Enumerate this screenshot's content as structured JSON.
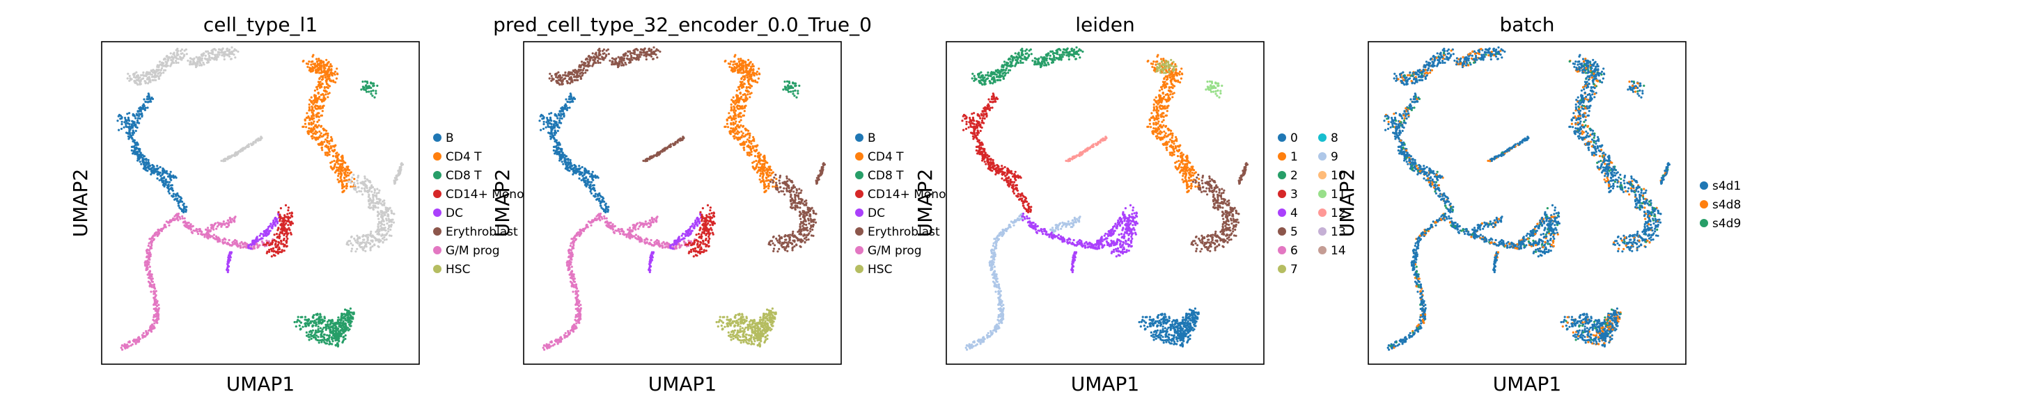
{
  "chart_data": [
    {
      "type": "scatter",
      "title": "cell_type_l1",
      "xlabel": "UMAP1",
      "ylabel": "UMAP2",
      "grid": false,
      "legend_position": "right",
      "legend_columns": 1,
      "series": [
        {
          "name": "B",
          "color": "#1f77b4"
        },
        {
          "name": "CD4 T",
          "color": "#ff7f0e"
        },
        {
          "name": "CD8 T",
          "color": "#279e68"
        },
        {
          "name": "CD14+ Mono",
          "color": "#d62728"
        },
        {
          "name": "DC",
          "color": "#aa40fc"
        },
        {
          "name": "Erythroblast",
          "color": "#8c564b"
        },
        {
          "name": "G/M prog",
          "color": "#e377c2"
        },
        {
          "name": "HSC",
          "color": "#b5bd61"
        }
      ]
    },
    {
      "type": "scatter",
      "title": "pred_cell_type_32_encoder_0.0_True_0",
      "xlabel": "UMAP1",
      "ylabel": "UMAP2",
      "grid": false,
      "legend_position": "right",
      "legend_columns": 1,
      "series": [
        {
          "name": "B",
          "color": "#1f77b4"
        },
        {
          "name": "CD4 T",
          "color": "#ff7f0e"
        },
        {
          "name": "CD8 T",
          "color": "#279e68"
        },
        {
          "name": "CD14+ Mono",
          "color": "#d62728"
        },
        {
          "name": "DC",
          "color": "#aa40fc"
        },
        {
          "name": "Erythroblast",
          "color": "#8c564b"
        },
        {
          "name": "G/M prog",
          "color": "#e377c2"
        },
        {
          "name": "HSC",
          "color": "#b5bd61"
        }
      ]
    },
    {
      "type": "scatter",
      "title": "leiden",
      "xlabel": "UMAP1",
      "ylabel": "UMAP2",
      "grid": false,
      "legend_position": "right",
      "legend_columns": 2,
      "series": [
        {
          "name": "0",
          "color": "#1f77b4"
        },
        {
          "name": "1",
          "color": "#ff7f0e"
        },
        {
          "name": "2",
          "color": "#279e68"
        },
        {
          "name": "3",
          "color": "#d62728"
        },
        {
          "name": "4",
          "color": "#aa40fc"
        },
        {
          "name": "5",
          "color": "#8c564b"
        },
        {
          "name": "6",
          "color": "#e377c2"
        },
        {
          "name": "7",
          "color": "#b5bd61"
        },
        {
          "name": "8",
          "color": "#17becf"
        },
        {
          "name": "9",
          "color": "#aec7e8"
        },
        {
          "name": "10",
          "color": "#ffbb78"
        },
        {
          "name": "11",
          "color": "#98df8a"
        },
        {
          "name": "12",
          "color": "#ff9896"
        },
        {
          "name": "13",
          "color": "#c5b0d5"
        },
        {
          "name": "14",
          "color": "#c49c94"
        }
      ]
    },
    {
      "type": "scatter",
      "title": "batch",
      "xlabel": "UMAP1",
      "ylabel": "UMAP2",
      "grid": false,
      "legend_position": "right",
      "legend_columns": 1,
      "series": [
        {
          "name": "s4d1",
          "color": "#1f77b4"
        },
        {
          "name": "s4d8",
          "color": "#ff7f0e"
        },
        {
          "name": "s4d9",
          "color": "#279e68"
        }
      ]
    }
  ]
}
